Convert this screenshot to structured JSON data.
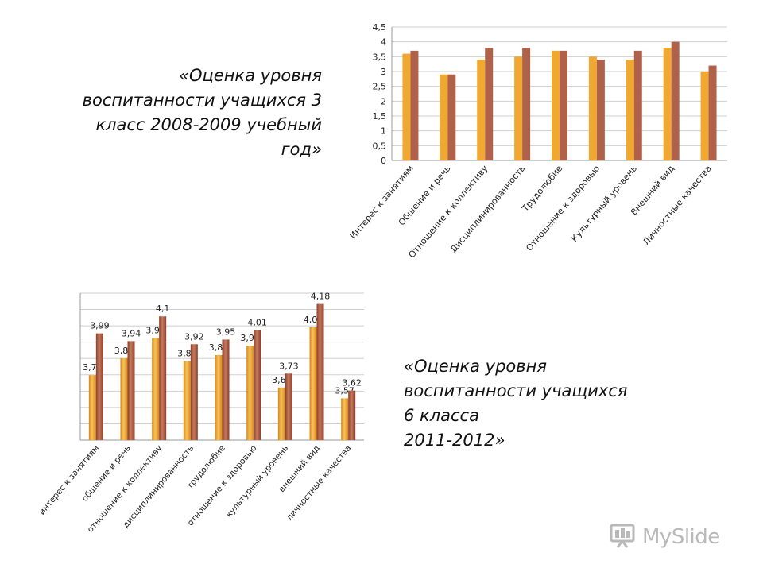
{
  "captions": {
    "top": "«Оценка уровня воспитанности учащихся 3 класс 2008-2009 учебный год»",
    "bottom_lines": [
      "«Оценка уровня",
      "воспитанности учащихся",
      "6 класса",
      "2011-2012»"
    ]
  },
  "logo": {
    "text": "MySlide",
    "icon": "slides-icon"
  },
  "colors": {
    "orange": "#F0A830",
    "brown": "#B0614A",
    "grid": "#cfcfcf",
    "axis_text": "#222222"
  },
  "chart_data": [
    {
      "type": "bar",
      "title": "",
      "categories": [
        "Интерес к занятиям",
        "Общение и речь",
        "Отношение к коллективу",
        "Дисциплинированность",
        "Трудолюбие",
        "Отношение к здоровью",
        "Культурный уровень",
        "Внешний вид",
        "Личностные качества"
      ],
      "series": [
        {
          "values": [
            3.6,
            2.9,
            3.4,
            3.5,
            3.7,
            3.5,
            3.4,
            3.8,
            3.0
          ]
        },
        {
          "values": [
            3.7,
            2.9,
            3.8,
            3.8,
            3.7,
            3.4,
            3.7,
            4.0,
            3.2
          ]
        }
      ],
      "ylim": [
        0,
        4.5
      ],
      "yticks": [
        "0",
        "0,5",
        "1",
        "1,5",
        "2",
        "2,5",
        "3",
        "3,5",
        "4",
        "4,5"
      ],
      "grid": true,
      "legend": "none"
    },
    {
      "type": "bar",
      "title": "",
      "categories": [
        "интерес к занятиям",
        "общение и речь",
        "отношение к коллективу",
        "дисциплинированность",
        "трудолюбие",
        "отношение к здоровью",
        "культурный уровень",
        "внешний вид",
        "личностные качества"
      ],
      "series": [
        {
          "values": [
            3.72,
            3.83,
            3.96,
            3.81,
            3.85,
            3.91,
            3.64,
            4.03,
            3.57
          ],
          "labels": [
            "3,72",
            "3,83",
            "3,96",
            "3,81",
            "3,85",
            "3,91",
            "3,64",
            "4,03",
            "3,57"
          ]
        },
        {
          "values": [
            3.99,
            3.94,
            4.1,
            3.92,
            3.95,
            4.01,
            3.73,
            4.18,
            3.62
          ],
          "labels": [
            "3,99",
            "3,94",
            "4,1",
            "3,92",
            "3,95",
            "4,01",
            "3,73",
            "4,18",
            "3,62"
          ]
        }
      ],
      "ylim": [
        3.3,
        4.25
      ],
      "grid": true,
      "legend": "none"
    }
  ]
}
